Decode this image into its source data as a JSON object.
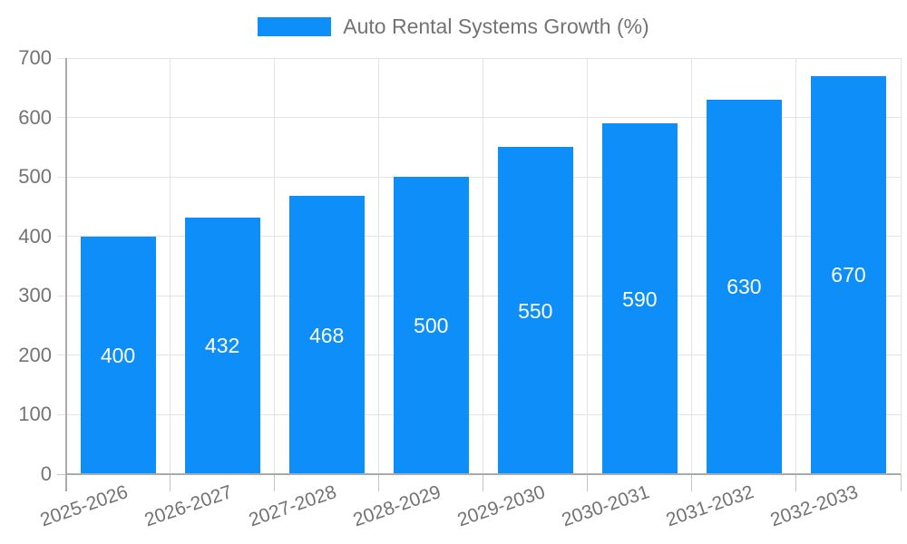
{
  "legend": {
    "label": "Auto Rental Systems Growth (%)"
  },
  "chart_data": {
    "type": "bar",
    "title": "Auto Rental Systems Growth (%)",
    "categories": [
      "2025-2026",
      "2026-2027",
      "2027-2028",
      "2028-2029",
      "2029-2030",
      "2030-2031",
      "2031-2032",
      "2032-2033"
    ],
    "series": [
      {
        "name": "Auto Rental Systems Growth (%)",
        "values": [
          400,
          432,
          468,
          500,
          550,
          590,
          630,
          670
        ]
      }
    ],
    "value_labels": [
      "400",
      "432",
      "468",
      "500",
      "550",
      "590",
      "630",
      "670"
    ],
    "xlabel": "",
    "ylabel": "",
    "ylim": [
      0,
      700
    ],
    "y_ticks": [
      0,
      100,
      200,
      300,
      400,
      500,
      600,
      700
    ],
    "grid": "on",
    "legend_position": "top-center",
    "x_label_rotation_deg": -19,
    "colors": {
      "bar": "#0D8EF8",
      "value_label": "#ffffff",
      "axis_text": "#737373",
      "gridline": "#e3e3e3",
      "tick": "#c4c4c4",
      "axis_line": "#aaaaaa"
    }
  }
}
